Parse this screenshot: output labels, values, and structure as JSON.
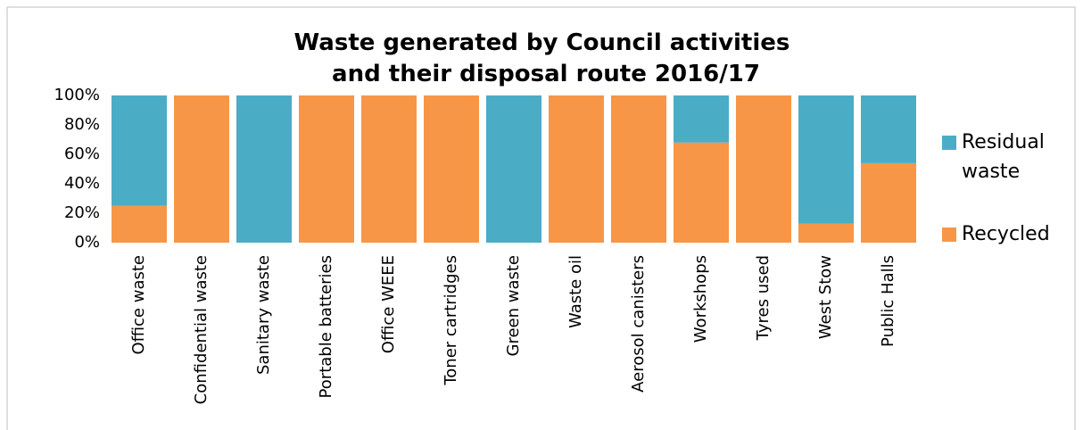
{
  "chart_data": {
    "type": "bar",
    "stacked": true,
    "title": "Waste generated by Council activities and their disposal route 2016/17",
    "categories": [
      "Office waste",
      "Confidential waste",
      "Sanitary waste",
      "Portable batteries",
      "Office WEEE",
      "Toner cartridges",
      "Green waste",
      "Waste oil",
      "Aerosol canisters",
      "Workshops",
      "Tyres used",
      "West Stow",
      "Public Halls"
    ],
    "series": [
      {
        "name": "Residual waste",
        "color": "#4bacc6",
        "values": [
          75,
          0,
          100,
          0,
          0,
          0,
          100,
          0,
          0,
          32,
          0,
          87,
          46
        ]
      },
      {
        "name": "Recycled",
        "color": "#f79646",
        "values": [
          25,
          100,
          0,
          100,
          100,
          100,
          0,
          100,
          100,
          68,
          100,
          13,
          54
        ]
      }
    ],
    "ylim": [
      0,
      100
    ],
    "yticks": [
      {
        "value": 0,
        "label": "0%"
      },
      {
        "value": 20,
        "label": "20%"
      },
      {
        "value": 40,
        "label": "40%"
      },
      {
        "value": 60,
        "label": "60%"
      },
      {
        "value": 80,
        "label": "80%"
      },
      {
        "value": 100,
        "label": "100%"
      }
    ],
    "legend": "right"
  }
}
